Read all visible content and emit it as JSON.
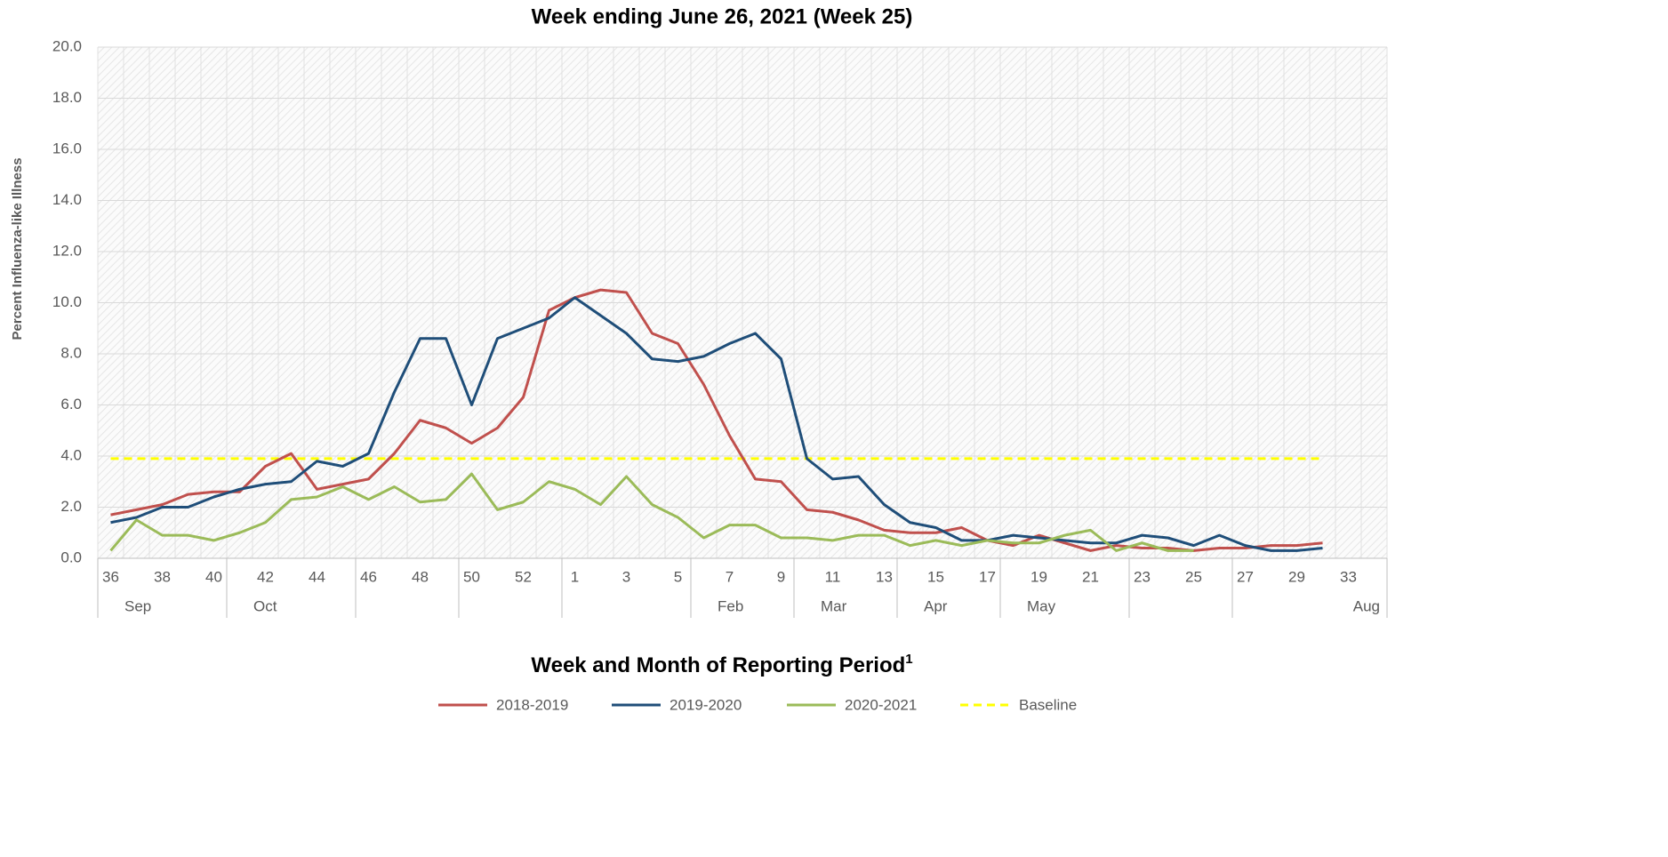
{
  "chart_data": {
    "type": "line",
    "title": "Week ending June 26, 2021 (Week 25)",
    "x_label": "Week and Month of Reporting Period",
    "x_label_note": "1",
    "y_label": "Percent Influenza-like Illness",
    "categories": [
      "36",
      null,
      "38",
      null,
      "40",
      null,
      "42",
      null,
      "44",
      null,
      "46",
      null,
      "48",
      null,
      "50",
      null,
      "52",
      null,
      "1",
      null,
      "3",
      null,
      "5",
      null,
      "7",
      null,
      "9",
      null,
      "11",
      null,
      "13",
      null,
      "15",
      null,
      "17",
      null,
      "19",
      null,
      "21",
      null,
      "23",
      null,
      "25",
      null,
      "27",
      null,
      "29",
      null,
      "33",
      null
    ],
    "months": [
      "Sep",
      "Oct",
      null,
      null,
      null,
      "Feb",
      "Mar",
      "Apr",
      "May",
      null,
      "Aug"
    ],
    "ylim": [
      0,
      20
    ],
    "yticks": [
      {
        "value": 0,
        "label": "0.0"
      },
      {
        "value": 2,
        "label": "2.0"
      },
      {
        "value": 4,
        "label": "4.0"
      },
      {
        "value": 6,
        "label": "6.0"
      },
      {
        "value": 8,
        "label": "8.0"
      },
      {
        "value": 10,
        "label": "10.0"
      },
      {
        "value": 12,
        "label": "12.0"
      },
      {
        "value": 14,
        "label": "14.0"
      },
      {
        "value": 16,
        "label": "16.0"
      },
      {
        "value": 18,
        "label": "18.0"
      },
      {
        "value": 20,
        "label": "20.0"
      }
    ],
    "grid": true,
    "legend": "bottom",
    "series": [
      {
        "name": "2018-2019",
        "color": "#c0504d",
        "values": [
          1.7,
          1.9,
          2.1,
          2.5,
          2.6,
          2.6,
          3.6,
          4.1,
          2.7,
          2.9,
          3.1,
          4.1,
          5.4,
          5.1,
          4.5,
          5.1,
          6.3,
          9.7,
          10.2,
          10.5,
          10.4,
          8.8,
          8.4,
          6.8,
          4.8,
          3.1,
          3.0,
          1.9,
          1.8,
          1.5,
          1.1,
          1.0,
          1.0,
          1.2,
          0.7,
          0.5,
          0.9,
          0.6,
          0.3,
          0.5,
          0.4,
          0.4,
          0.3,
          0.4,
          0.4,
          0.5,
          0.5,
          0.6,
          null,
          null
        ]
      },
      {
        "name": "2019-2020",
        "color": "#1f4e79",
        "values": [
          1.4,
          1.6,
          2.0,
          2.0,
          2.4,
          2.7,
          2.9,
          3.0,
          3.8,
          3.6,
          4.1,
          6.5,
          8.6,
          8.6,
          6.0,
          8.6,
          9.0,
          9.4,
          10.2,
          9.5,
          8.8,
          7.8,
          7.7,
          7.9,
          8.4,
          8.8,
          7.8,
          3.9,
          3.1,
          3.2,
          2.1,
          1.4,
          1.2,
          0.7,
          0.7,
          0.9,
          0.8,
          0.7,
          0.6,
          0.6,
          0.9,
          0.8,
          0.5,
          0.9,
          0.5,
          0.3,
          0.3,
          0.4,
          null,
          null
        ]
      },
      {
        "name": "2020-2021",
        "color": "#9bbb59",
        "values": [
          0.3,
          1.5,
          0.9,
          0.9,
          0.7,
          1.0,
          1.4,
          2.3,
          2.4,
          2.8,
          2.3,
          2.8,
          2.2,
          2.3,
          3.3,
          1.9,
          2.2,
          3.0,
          2.7,
          2.1,
          3.2,
          2.1,
          1.6,
          0.8,
          1.3,
          1.3,
          0.8,
          0.8,
          0.7,
          0.9,
          0.9,
          0.5,
          0.7,
          0.5,
          0.7,
          0.6,
          0.6,
          0.9,
          1.1,
          0.3,
          0.6,
          0.3,
          0.3,
          null,
          null,
          null,
          null,
          null,
          null,
          null
        ]
      }
    ],
    "baseline": {
      "name": "Baseline",
      "value": 3.9,
      "color": "#ffff00"
    }
  }
}
